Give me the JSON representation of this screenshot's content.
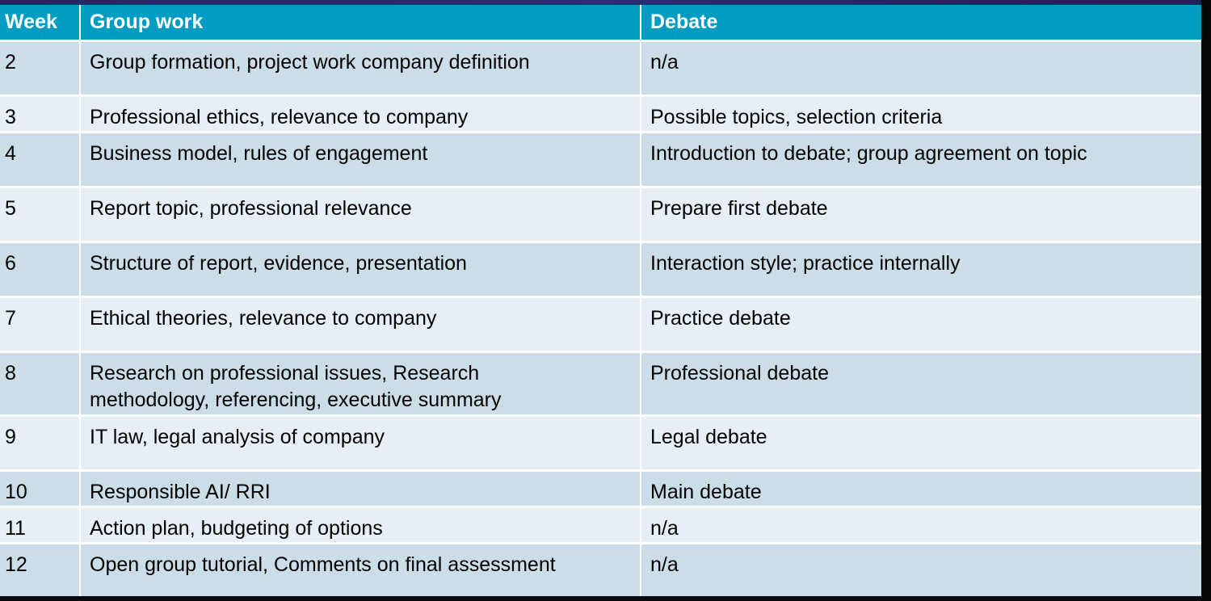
{
  "table": {
    "columns": [
      "Week",
      "Group work",
      "Debate"
    ],
    "rows": [
      {
        "week": "2",
        "group_work": "Group formation, project work company definition",
        "debate": "n/a"
      },
      {
        "week": "3",
        "group_work": "Professional ethics, relevance to company",
        "debate": "Possible topics, selection criteria"
      },
      {
        "week": "4",
        "group_work": "Business model, rules of engagement",
        "debate": "Introduction to debate; group agreement on topic"
      },
      {
        "week": "5",
        "group_work": "Report topic, professional relevance",
        "debate": "Prepare first debate"
      },
      {
        "week": "6",
        "group_work": "Structure of report, evidence, presentation",
        "debate": "Interaction style; practice internally"
      },
      {
        "week": "7",
        "group_work": "Ethical theories, relevance to company",
        "debate": "Practice debate"
      },
      {
        "week": "8",
        "group_work_line1": "Research on professional issues, Research",
        "group_work_line2": "methodology, referencing, executive summary",
        "debate": "Professional debate"
      },
      {
        "week": "9",
        "group_work": "IT law, legal analysis of company",
        "debate": "Legal debate"
      },
      {
        "week": "10",
        "group_work": "Responsible AI/ RRI",
        "debate": "Main debate"
      },
      {
        "week": "11",
        "group_work": "Action plan, budgeting of options",
        "debate": "n/a"
      },
      {
        "week": "12",
        "group_work": "Open group tutorial, Comments on final assessment",
        "debate": "n/a"
      }
    ]
  },
  "colors": {
    "header_bg": "#009cc2",
    "row_odd": "#cbdde7",
    "row_even": "#e6eff5",
    "top_strip": "#1f2a63"
  }
}
